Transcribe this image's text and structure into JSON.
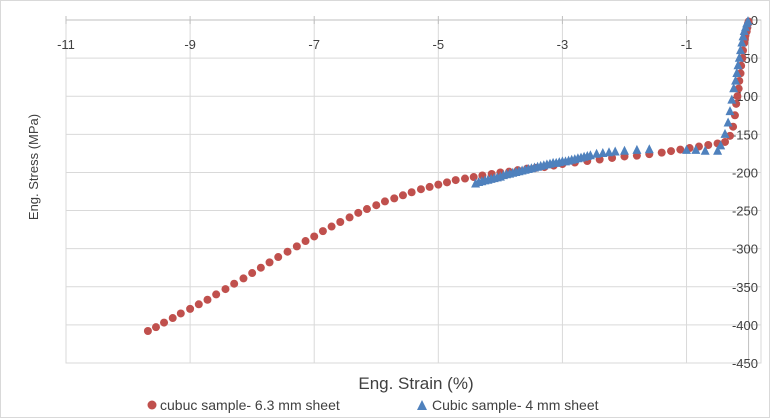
{
  "chart_data": {
    "type": "scatter",
    "xlabel": "Eng. Strain (%)",
    "ylabel": "Eng. Stress (MPa)",
    "xlim": [
      -11,
      0.2
    ],
    "ylim": [
      -450,
      0
    ],
    "x_ticks": [
      -11,
      -9,
      -7,
      -5,
      -3,
      -1
    ],
    "y_ticks": [
      0,
      -50,
      -100,
      -150,
      -200,
      -250,
      -300,
      -350,
      -400,
      -450
    ],
    "grid": true,
    "legend_position": "bottom",
    "series": [
      {
        "name": "cubuc sample- 6.3 mm sheet",
        "marker": "circle",
        "color": "#c0504d",
        "x": [
          -9.68,
          -9.55,
          -9.42,
          -9.28,
          -9.15,
          -9.0,
          -8.86,
          -8.72,
          -8.58,
          -8.43,
          -8.29,
          -8.14,
          -8.0,
          -7.86,
          -7.72,
          -7.58,
          -7.43,
          -7.28,
          -7.14,
          -7.0,
          -6.86,
          -6.72,
          -6.58,
          -6.43,
          -6.29,
          -6.15,
          -6.0,
          -5.86,
          -5.71,
          -5.57,
          -5.43,
          -5.28,
          -5.14,
          -5.0,
          -4.86,
          -4.72,
          -4.57,
          -4.43,
          -4.29,
          -4.14,
          -4.0,
          -3.86,
          -3.72,
          -3.57,
          -3.43,
          -3.29,
          -3.14,
          -3.0,
          -2.8,
          -2.6,
          -2.4,
          -2.2,
          -2.0,
          -1.8,
          -1.6,
          -1.4,
          -1.25,
          -1.1,
          -0.95,
          -0.8,
          -0.65,
          -0.5,
          -0.38,
          -0.3,
          -0.25,
          -0.22,
          -0.2,
          -0.18,
          -0.16,
          -0.15,
          -0.13,
          -0.12,
          -0.1,
          -0.09,
          -0.07,
          -0.06,
          -0.05,
          -0.03,
          -0.02,
          -0.01,
          0.0
        ],
        "y": [
          -408,
          -403,
          -397,
          -391,
          -385,
          -379,
          -373,
          -367,
          -360,
          -353,
          -346,
          -339,
          -332,
          -325,
          -318,
          -311,
          -304,
          -297,
          -290,
          -284,
          -277,
          -271,
          -265,
          -259,
          -253,
          -248,
          -243,
          -238,
          -234,
          -230,
          -226,
          -222,
          -219,
          -216,
          -213,
          -210,
          -208,
          -206,
          -204,
          -202,
          -200,
          -199,
          -197,
          -195,
          -194,
          -193,
          -191,
          -189,
          -187,
          -185,
          -183,
          -181,
          -179,
          -178,
          -176,
          -174,
          -172,
          -170,
          -168,
          -166,
          -164,
          -162,
          -160,
          -152,
          -140,
          -125,
          -110,
          -100,
          -90,
          -80,
          -70,
          -60,
          -50,
          -40,
          -30,
          -25,
          -20,
          -15,
          -10,
          -5,
          -2
        ]
      },
      {
        "name": "Cubic sample- 4 mm sheet",
        "marker": "triangle",
        "color": "#4f81bd",
        "x": [
          -4.4,
          -4.35,
          -4.3,
          -4.25,
          -4.2,
          -4.15,
          -4.1,
          -4.05,
          -4.0,
          -3.95,
          -3.9,
          -3.85,
          -3.8,
          -3.75,
          -3.7,
          -3.65,
          -3.6,
          -3.55,
          -3.5,
          -3.45,
          -3.4,
          -3.35,
          -3.3,
          -3.25,
          -3.2,
          -3.15,
          -3.1,
          -3.05,
          -3.0,
          -2.95,
          -2.9,
          -2.85,
          -2.8,
          -2.75,
          -2.7,
          -2.65,
          -2.6,
          -2.55,
          -2.45,
          -2.35,
          -2.25,
          -2.15,
          -2.0,
          -1.8,
          -1.6,
          -1.0,
          -0.85,
          -0.7,
          -0.5,
          -0.45,
          -0.38,
          -0.33,
          -0.3,
          -0.27,
          -0.24,
          -0.21,
          -0.19,
          -0.17,
          -0.15,
          -0.13,
          -0.11,
          -0.09,
          -0.07,
          -0.05,
          -0.03,
          -0.01
        ],
        "y": [
          -215,
          -213,
          -212,
          -211,
          -210,
          -209,
          -208,
          -207,
          -206,
          -204,
          -203,
          -202,
          -201,
          -200,
          -199,
          -198,
          -197,
          -196,
          -195,
          -194,
          -193,
          -192,
          -191,
          -190,
          -189,
          -188,
          -188,
          -187,
          -186,
          -186,
          -185,
          -184,
          -183,
          -182,
          -181,
          -180,
          -179,
          -178,
          -176,
          -175,
          -174,
          -173,
          -172,
          -171,
          -170,
          -171,
          -171,
          -172,
          -172,
          -165,
          -150,
          -135,
          -120,
          -105,
          -90,
          -80,
          -70,
          -60,
          -50,
          -40,
          -30,
          -22,
          -15,
          -10,
          -5,
          -2
        ]
      }
    ]
  }
}
